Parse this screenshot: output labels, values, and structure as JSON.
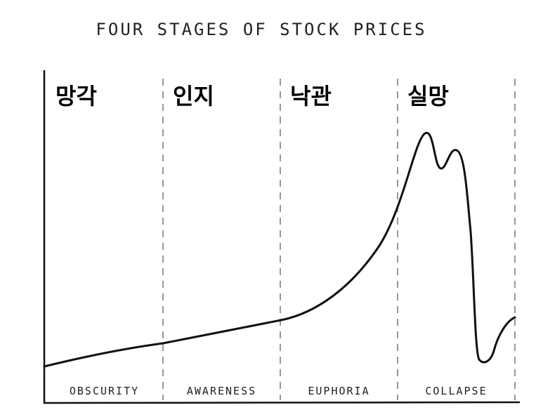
{
  "title": "FOUR STAGES OF STOCK PRICES",
  "stages": [
    {
      "label_ko": "망각",
      "label_en": "OBSCURITY"
    },
    {
      "label_ko": "인지",
      "label_en": "AWARENESS"
    },
    {
      "label_ko": "낙관",
      "label_en": "EUPHORIA"
    },
    {
      "label_ko": "실망",
      "label_en": "COLLAPSE"
    }
  ]
}
